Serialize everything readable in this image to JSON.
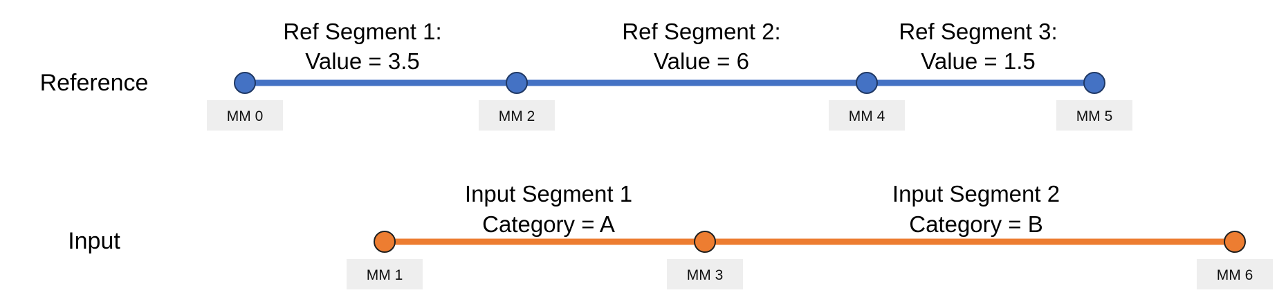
{
  "reference": {
    "label": "Reference",
    "color": "#4472C4",
    "stroke": "#1F3864",
    "markers": [
      "MM 0",
      "MM 2",
      "MM 4",
      "MM 5"
    ],
    "segments": [
      {
        "title": "Ref Segment 1:",
        "detail": "Value = 3.5"
      },
      {
        "title": "Ref Segment 2:",
        "detail": "Value = 6"
      },
      {
        "title": "Ref Segment 3:",
        "detail": "Value = 1.5"
      }
    ]
  },
  "input": {
    "label": "Input",
    "color": "#ED7D31",
    "stroke": "#1F1F1F",
    "markers": [
      "MM 1",
      "MM 3",
      "MM 6"
    ],
    "segments": [
      {
        "title": "Input Segment 1",
        "detail": "Category = A"
      },
      {
        "title": "Input Segment 2",
        "detail": "Category = B"
      }
    ]
  }
}
